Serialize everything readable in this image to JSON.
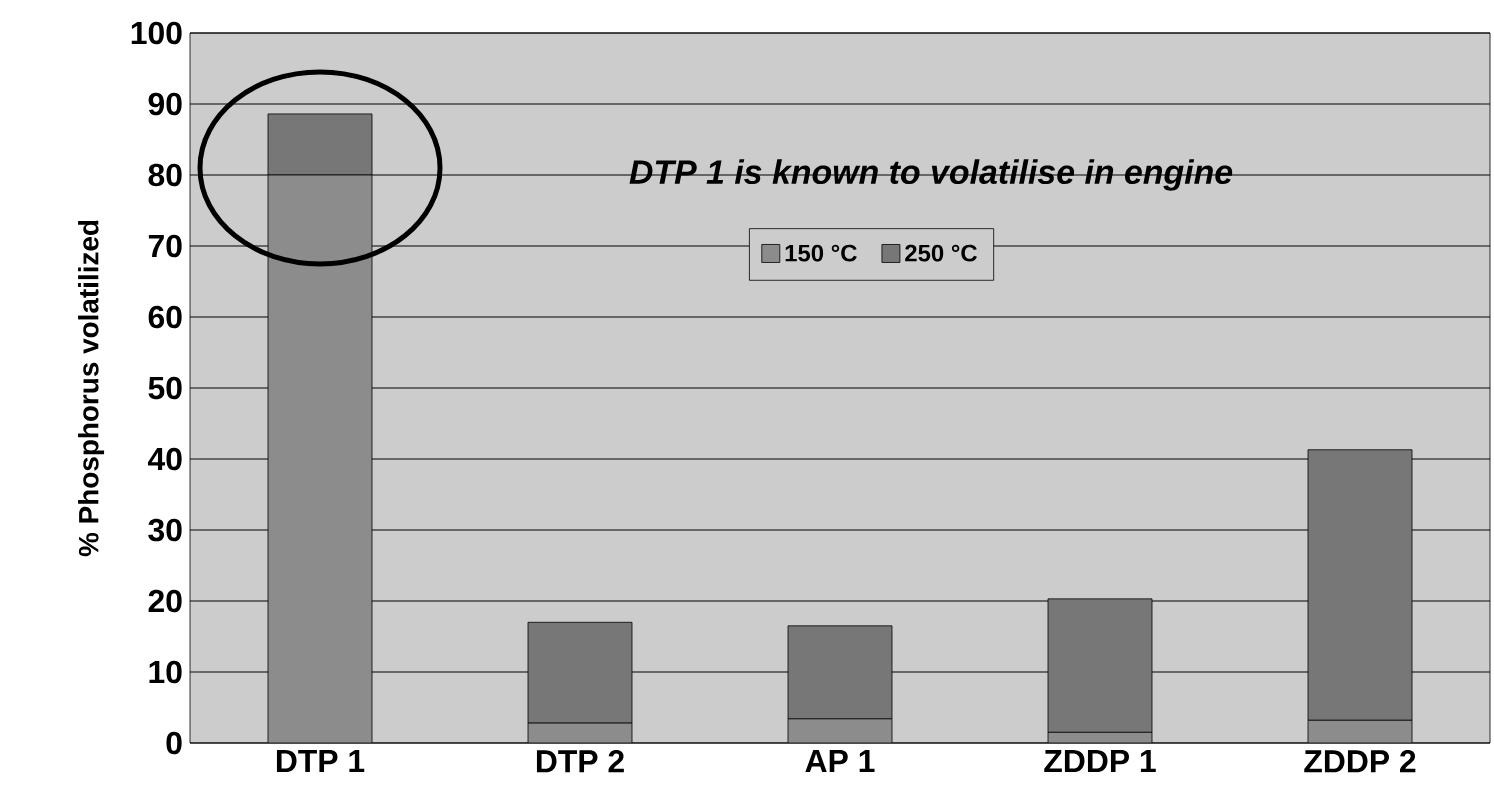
{
  "chart_data": {
    "type": "bar",
    "stacked": true,
    "ylabel": "% Phosphorus volatilized",
    "categories": [
      "DTP 1",
      "DTP 2",
      "AP 1",
      "ZDDP 1",
      "ZDDP 2"
    ],
    "series": [
      {
        "name": "150 °C",
        "color": "#8c8c8c",
        "values": [
          80,
          2.8,
          3.4,
          1.5,
          3.2
        ]
      },
      {
        "name": "250 °C",
        "color": "#777777",
        "values": [
          8.6,
          14.2,
          13.1,
          18.8,
          38.1
        ]
      }
    ],
    "ylim": [
      0,
      100
    ],
    "yticks": [
      0,
      10,
      20,
      30,
      40,
      50,
      60,
      70,
      80,
      90,
      100
    ],
    "grid": "y",
    "legend": "top",
    "annotations": [
      "DTP 1 is known to volatilise in engine"
    ]
  }
}
